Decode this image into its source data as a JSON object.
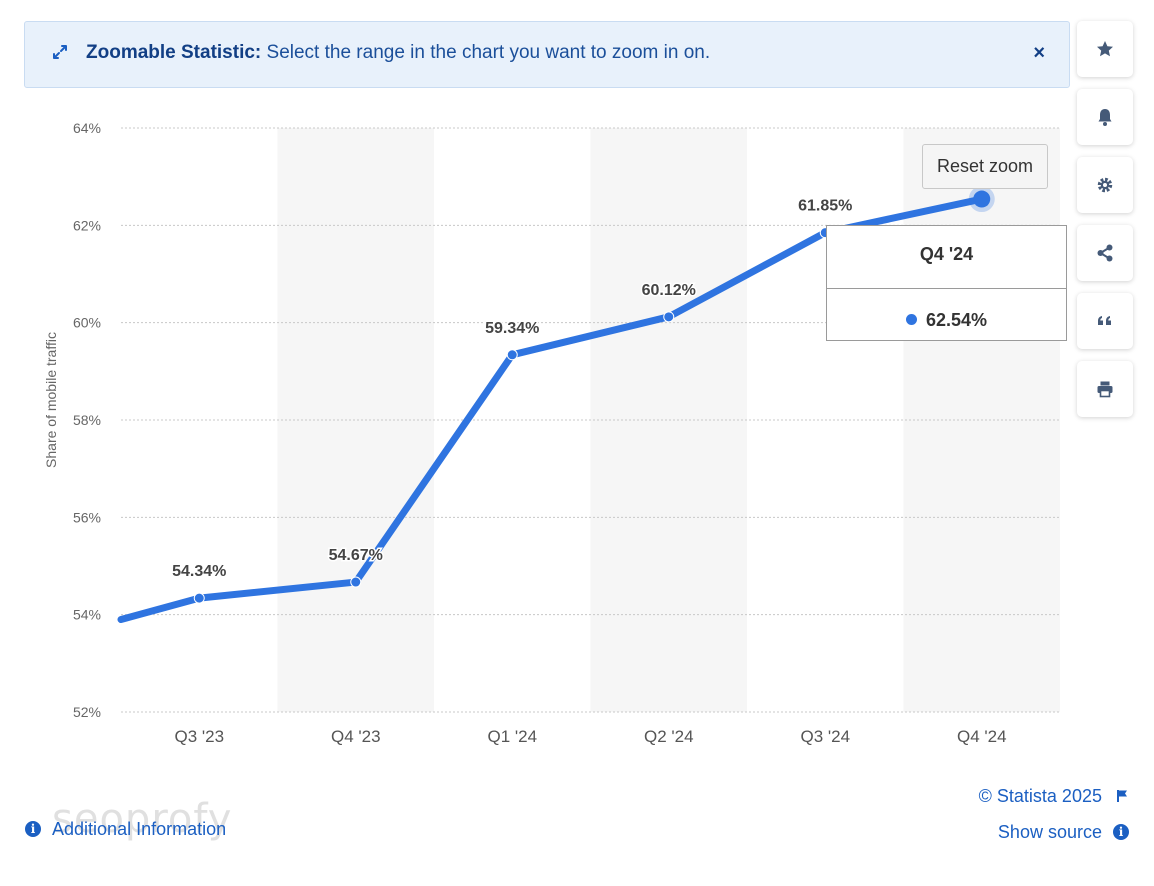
{
  "banner": {
    "title": "Zoomable Statistic:",
    "text": " Select the range in the chart you want to zoom in on.",
    "close": "×"
  },
  "sidebar": {
    "buttons": [
      {
        "icon": "star-icon"
      },
      {
        "icon": "bell-icon"
      },
      {
        "icon": "gear-icon"
      },
      {
        "icon": "share-icon"
      },
      {
        "icon": "quote-icon"
      },
      {
        "icon": "print-icon"
      }
    ]
  },
  "reset_zoom": "Reset zoom",
  "tooltip": {
    "category": "Q4 '24",
    "value": "62.54%"
  },
  "footer": {
    "copyright": "© Statista 2025",
    "show_source": "Show source",
    "additional_info": "Additional Information",
    "watermark": "seoprofy"
  },
  "colors": {
    "line": "#2f74e0",
    "banner_bg": "#e8f1fb",
    "link": "#1b5fc2",
    "band": "#f6f6f6"
  },
  "chart_data": {
    "type": "line",
    "ylabel": "Share of mobile traffic",
    "categories": [
      "Q3 '23",
      "Q4 '23",
      "Q1 '24",
      "Q2 '24",
      "Q3 '24",
      "Q4 '24"
    ],
    "series": [
      {
        "values": [
          54.34,
          54.67,
          59.34,
          60.12,
          61.85,
          62.54
        ]
      }
    ],
    "data_labels": [
      "54.34%",
      "54.67%",
      "59.34%",
      "60.12%",
      "61.85%",
      ""
    ],
    "prior_value_offscreen": 53.9,
    "ylim": [
      52,
      64
    ],
    "yticks": [
      52,
      54,
      56,
      58,
      60,
      62,
      64
    ],
    "ytick_labels": [
      "52%",
      "54%",
      "56%",
      "58%",
      "60%",
      "62%",
      "64%"
    ],
    "grid": true,
    "highlighted_index": 5
  }
}
